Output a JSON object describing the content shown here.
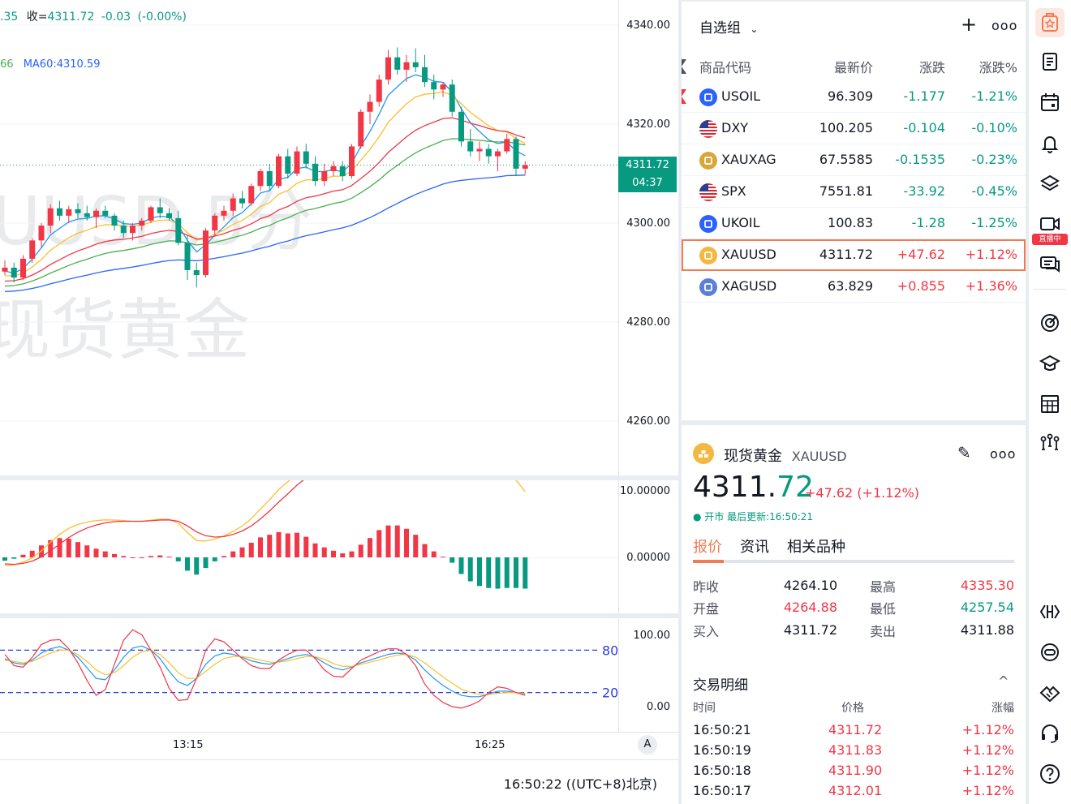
{
  "chart": {
    "legend_ohlc_fragment": ".35",
    "legend_close_label": "收=",
    "legend_close_value": "4311.72",
    "legend_change": "-0.03",
    "legend_change_pct": "(-0.00%)",
    "legend_ma_fragment": "66",
    "legend_ma60": "MA60:4310.59",
    "watermark_symbol": "UUSD,5分",
    "watermark_name": "现货黄金",
    "price_axis": [
      "4340.00",
      "4320.00",
      "4300.00",
      "4280.00",
      "4260.00"
    ],
    "last_price_tag": "4311.72",
    "countdown_tag": "04:37",
    "macd_axis": [
      "10.00000",
      "0.00000"
    ],
    "kdj_axis": [
      "100.00",
      "0.00"
    ],
    "kdj_levels": [
      "80",
      "20"
    ],
    "time_axis": [
      "13:15",
      "16:25"
    ],
    "auto_scale_label": "A",
    "clock": "16:50:22",
    "timezone": "((UTC+8)北京)",
    "colors": {
      "up": "#f23645",
      "down": "#089981",
      "ma_blue": "#2962ff",
      "accent": "#f07b52"
    },
    "candles": [
      [
        4290.2,
        4292.5,
        4289.5,
        4291.0
      ],
      [
        4291.0,
        4292.0,
        4288.0,
        4289.0
      ],
      [
        4289.0,
        4293.5,
        4288.5,
        4292.8
      ],
      [
        4292.8,
        4297.0,
        4292.0,
        4296.5
      ],
      [
        4296.5,
        4300.0,
        4295.0,
        4299.5
      ],
      [
        4299.5,
        4303.8,
        4298.0,
        4303.0
      ],
      [
        4303.0,
        4304.5,
        4300.5,
        4301.5
      ],
      [
        4301.5,
        4303.5,
        4300.0,
        4302.8
      ],
      [
        4302.8,
        4304.0,
        4301.0,
        4302.0
      ],
      [
        4302.0,
        4303.5,
        4300.5,
        4301.2
      ],
      [
        4301.2,
        4303.0,
        4299.0,
        4302.5
      ],
      [
        4302.5,
        4303.5,
        4301.0,
        4301.5
      ],
      [
        4301.5,
        4302.0,
        4298.5,
        4299.5
      ],
      [
        4299.5,
        4300.5,
        4297.0,
        4298.0
      ],
      [
        4298.0,
        4300.0,
        4296.5,
        4299.5
      ],
      [
        4299.5,
        4301.0,
        4298.5,
        4300.5
      ],
      [
        4300.5,
        4303.5,
        4300.0,
        4303.2
      ],
      [
        4303.2,
        4305.0,
        4301.0,
        4302.0
      ],
      [
        4302.0,
        4303.0,
        4300.5,
        4301.0
      ],
      [
        4301.0,
        4302.5,
        4295.5,
        4296.0
      ],
      [
        4296.0,
        4297.5,
        4288.5,
        4290.5
      ],
      [
        4290.5,
        4292.0,
        4287.0,
        4289.5
      ],
      [
        4289.5,
        4299.0,
        4289.0,
        4298.5
      ],
      [
        4298.5,
        4302.0,
        4297.5,
        4301.5
      ],
      [
        4301.5,
        4303.5,
        4300.5,
        4302.5
      ],
      [
        4302.5,
        4306.0,
        4301.5,
        4305.0
      ],
      [
        4305.0,
        4306.5,
        4303.0,
        4304.0
      ],
      [
        4304.0,
        4308.0,
        4303.5,
        4307.5
      ],
      [
        4307.5,
        4311.0,
        4306.5,
        4310.5
      ],
      [
        4310.5,
        4312.0,
        4306.5,
        4307.5
      ],
      [
        4307.5,
        4314.0,
        4307.0,
        4313.5
      ],
      [
        4313.5,
        4315.0,
        4309.0,
        4310.0
      ],
      [
        4310.0,
        4315.5,
        4309.5,
        4314.5
      ],
      [
        4314.5,
        4316.0,
        4311.0,
        4312.0
      ],
      [
        4312.0,
        4313.5,
        4307.5,
        4308.5
      ],
      [
        4308.5,
        4312.0,
        4307.5,
        4310.5
      ],
      [
        4310.5,
        4312.5,
        4309.5,
        4311.5
      ],
      [
        4311.5,
        4312.5,
        4308.5,
        4309.5
      ],
      [
        4309.5,
        4316.0,
        4309.0,
        4315.5
      ],
      [
        4315.5,
        4323.0,
        4315.0,
        4322.5
      ],
      [
        4322.5,
        4326.0,
        4320.0,
        4324.5
      ],
      [
        4324.5,
        4330.0,
        4323.5,
        4329.0
      ],
      [
        4329.0,
        4335.0,
        4328.0,
        4333.5
      ],
      [
        4333.5,
        4335.5,
        4330.0,
        4331.0
      ],
      [
        4331.0,
        4334.0,
        4328.5,
        4332.5
      ],
      [
        4332.5,
        4335.3,
        4330.5,
        4331.5
      ],
      [
        4331.5,
        4334.0,
        4327.5,
        4328.5
      ],
      [
        4328.5,
        4330.0,
        4325.0,
        4327.0
      ],
      [
        4327.0,
        4328.5,
        4325.5,
        4328.0
      ],
      [
        4328.0,
        4329.0,
        4321.5,
        4322.5
      ],
      [
        4322.5,
        4323.5,
        4315.5,
        4316.5
      ],
      [
        4316.5,
        4319.0,
        4313.5,
        4314.5
      ],
      [
        4314.5,
        4316.5,
        4312.5,
        4315.0
      ],
      [
        4315.0,
        4316.0,
        4312.0,
        4313.5
      ],
      [
        4313.5,
        4315.0,
        4310.5,
        4314.5
      ],
      [
        4314.5,
        4318.0,
        4314.0,
        4317.0
      ],
      [
        4317.0,
        4317.5,
        4309.5,
        4311.0
      ],
      [
        4311.0,
        4312.5,
        4309.8,
        4311.72
      ]
    ],
    "macd_hist": [
      -0.5,
      -0.2,
      0.4,
      1.0,
      1.8,
      2.6,
      2.9,
      2.8,
      2.3,
      1.8,
      1.3,
      0.9,
      0.5,
      0.2,
      0.0,
      0.0,
      0.2,
      0.3,
      0.1,
      -0.6,
      -2.0,
      -2.6,
      -1.6,
      -0.6,
      0.2,
      0.9,
      1.5,
      2.2,
      3.0,
      3.4,
      3.8,
      3.6,
      3.7,
      3.1,
      2.1,
      1.5,
      1.0,
      0.6,
      0.9,
      1.9,
      2.9,
      4.1,
      4.8,
      4.8,
      4.3,
      3.4,
      2.0,
      0.9,
      0.1,
      -0.8,
      -2.5,
      -3.6,
      -4.3,
      -4.6,
      -4.7,
      -4.6,
      -4.6,
      -4.7
    ],
    "kdj_k": [
      68,
      62,
      60,
      66,
      76,
      82,
      85,
      80,
      70,
      55,
      40,
      38,
      52,
      70,
      83,
      86,
      80,
      68,
      50,
      35,
      30,
      40,
      60,
      72,
      76,
      74,
      70,
      65,
      62,
      60,
      64,
      68,
      72,
      74,
      70,
      62,
      55,
      52,
      56,
      62,
      66,
      70,
      74,
      76,
      74,
      66,
      52,
      40,
      30,
      22,
      16,
      14,
      14,
      18,
      22,
      22,
      20,
      18
    ],
    "kdj_d": [
      66,
      64,
      62,
      64,
      70,
      76,
      80,
      80,
      74,
      64,
      52,
      45,
      48,
      58,
      70,
      78,
      80,
      74,
      62,
      48,
      40,
      40,
      50,
      60,
      68,
      71,
      71,
      69,
      66,
      63,
      63,
      65,
      68,
      71,
      71,
      67,
      61,
      57,
      57,
      60,
      63,
      66,
      70,
      73,
      74,
      70,
      62,
      52,
      42,
      33,
      25,
      20,
      17,
      17,
      19,
      20,
      20,
      19
    ],
    "kdj_j": [
      74,
      58,
      56,
      70,
      88,
      94,
      95,
      82,
      62,
      37,
      16,
      24,
      60,
      94,
      109,
      102,
      80,
      56,
      26,
      9,
      10,
      40,
      80,
      96,
      92,
      80,
      68,
      58,
      54,
      54,
      66,
      74,
      80,
      80,
      68,
      52,
      43,
      42,
      54,
      66,
      72,
      78,
      82,
      82,
      74,
      58,
      32,
      16,
      6,
      0,
      -2,
      2,
      8,
      20,
      28,
      26,
      20,
      16
    ]
  },
  "watchlist": {
    "title": "自选组",
    "add_label": "+",
    "more_label": "ooo",
    "columns": {
      "symbol": "商品代码",
      "last": "最新价",
      "change": "涨跌",
      "change_pct": "涨跌%"
    },
    "rows": [
      {
        "symbol": "USOIL",
        "last": "96.309",
        "change": "-1.177",
        "change_pct": "-1.21%",
        "dir": "dn",
        "icon": "oil-icon"
      },
      {
        "symbol": "DXY",
        "last": "100.205",
        "change": "-0.104",
        "change_pct": "-0.10%",
        "dir": "dn",
        "icon": "us-flag-icon"
      },
      {
        "symbol": "XAUXAG",
        "last": "67.5585",
        "change": "-0.1535",
        "change_pct": "-0.23%",
        "dir": "dn",
        "icon": "gold-silver-icon"
      },
      {
        "symbol": "SPX",
        "last": "7551.81",
        "change": "-33.92",
        "change_pct": "-0.45%",
        "dir": "dn",
        "icon": "us-flag-icon"
      },
      {
        "symbol": "UKOIL",
        "last": "100.83",
        "change": "-1.28",
        "change_pct": "-1.25%",
        "dir": "dn",
        "icon": "oil-icon"
      },
      {
        "symbol": "XAUUSD",
        "last": "4311.72",
        "change": "+47.62",
        "change_pct": "+1.12%",
        "dir": "up",
        "icon": "gold-icon"
      },
      {
        "symbol": "XAGUSD",
        "last": "63.829",
        "change": "+0.855",
        "change_pct": "+1.36%",
        "dir": "up",
        "icon": "silver-icon"
      }
    ]
  },
  "detail": {
    "name": "现货黄金",
    "symbol": "XAUUSD",
    "price_main": "4311.",
    "price_tail": "72",
    "change": "+47.62 (+1.12%)",
    "status": "● 开市 最后更新:16:50:21",
    "tabs": [
      "报价",
      "资讯",
      "相关品种"
    ],
    "quote": [
      {
        "label": "昨收",
        "value": "4264.10",
        "dir": ""
      },
      {
        "label": "开盘",
        "value": "4264.88",
        "dir": "up"
      },
      {
        "label": "买入",
        "value": "4311.72",
        "dir": ""
      },
      {
        "label": "最高",
        "value": "4335.30",
        "dir": "up"
      },
      {
        "label": "最低",
        "value": "4257.54",
        "dir": "dn"
      },
      {
        "label": "卖出",
        "value": "4311.88",
        "dir": ""
      }
    ],
    "trades_title": "交易明细",
    "trades_caret": "^",
    "trades_cols": {
      "time": "时间",
      "price": "价格",
      "pct": "涨幅"
    },
    "trades": [
      {
        "time": "16:50:21",
        "price": "4311.72",
        "pct": "+1.12%"
      },
      {
        "time": "16:50:19",
        "price": "4311.83",
        "pct": "+1.12%"
      },
      {
        "time": "16:50:18",
        "price": "4311.90",
        "pct": "+1.12%"
      },
      {
        "time": "16:50:17",
        "price": "4312.01",
        "pct": "+1.12%"
      }
    ]
  },
  "toolbar": {
    "live_badge": "直播中"
  }
}
